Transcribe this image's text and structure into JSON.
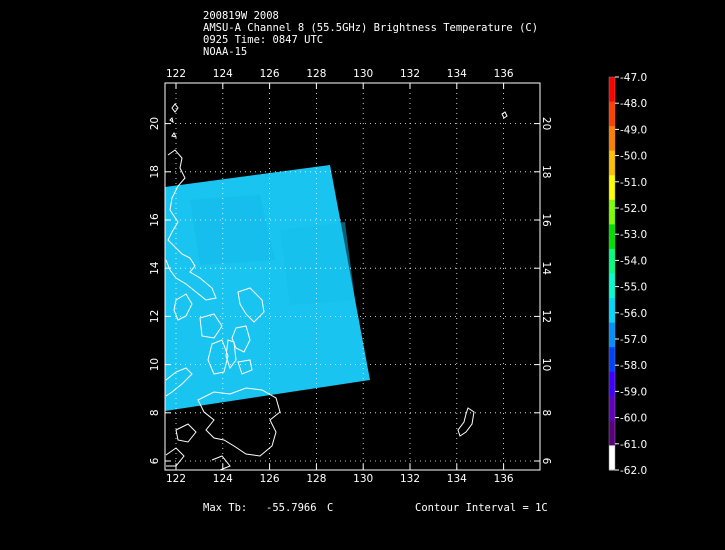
{
  "header": {
    "line1": "200819W 2008",
    "line2": "AMSU-A Channel 8 (55.5GHz) Brightness Temperature (C)",
    "line3": "0925 Time: 0847 UTC",
    "line4": "NOAA-15"
  },
  "map": {
    "lon_ticks": [
      "122",
      "124",
      "126",
      "128",
      "130",
      "132",
      "134",
      "136"
    ],
    "lat_ticks": [
      "6",
      "8",
      "10",
      "12",
      "14",
      "16",
      "18",
      "20"
    ],
    "swath_color": "#19c5f0",
    "land_outline_color": "#ffffff",
    "grid": "dotted"
  },
  "colorbar": {
    "labels": [
      "-47.0",
      "-48.0",
      "-49.0",
      "-50.0",
      "-51.0",
      "-52.0",
      "-53.0",
      "-54.0",
      "-55.0",
      "-56.0",
      "-57.0",
      "-58.0",
      "-59.0",
      "-60.0",
      "-61.0",
      "-62.0"
    ],
    "colors": [
      "#ff0000",
      "#ff4000",
      "#ff8000",
      "#ffc000",
      "#ffff00",
      "#80ff00",
      "#00e000",
      "#00ff80",
      "#00ffd0",
      "#00d8ff",
      "#0090ff",
      "#0040ff",
      "#4000ff",
      "#6000c0",
      "#5a0080",
      "#ffffff"
    ]
  },
  "footer": {
    "max_label": "Max Tb:",
    "max_value": "-55.7966",
    "max_unit": "C",
    "contour": "Contour Interval = 1C"
  }
}
